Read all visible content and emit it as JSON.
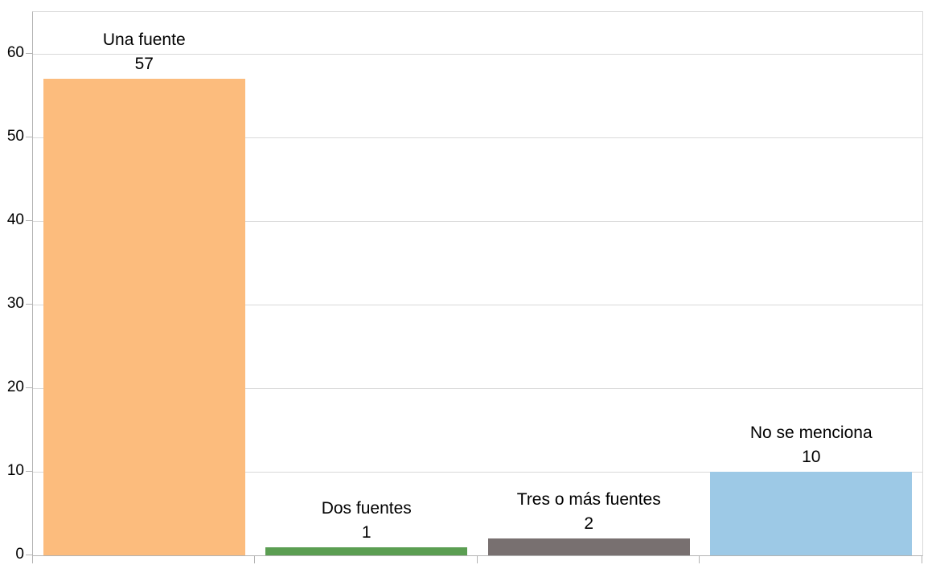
{
  "chart_data": {
    "type": "bar",
    "categories": [
      "Una fuente",
      "Dos fuentes",
      "Tres o más fuentes",
      "No se menciona"
    ],
    "values": [
      57,
      1,
      2,
      10
    ],
    "bar_colors": [
      "#FCBC7D",
      "#5B9E52",
      "#787070",
      "#9DC9E6"
    ],
    "title": "",
    "xlabel": "",
    "ylabel": "",
    "ylim": [
      0,
      65
    ],
    "yticks": [
      0,
      10,
      20,
      30,
      40,
      50,
      60
    ],
    "grid": "horizontal",
    "legend": "none",
    "data_labels": "category name and value above each bar"
  },
  "colors": {
    "background": "#FFFFFF",
    "gridline": "#D9D9D9",
    "axis": "#B3B3B3",
    "frame": "#D9D9D9",
    "text": "#000000"
  }
}
